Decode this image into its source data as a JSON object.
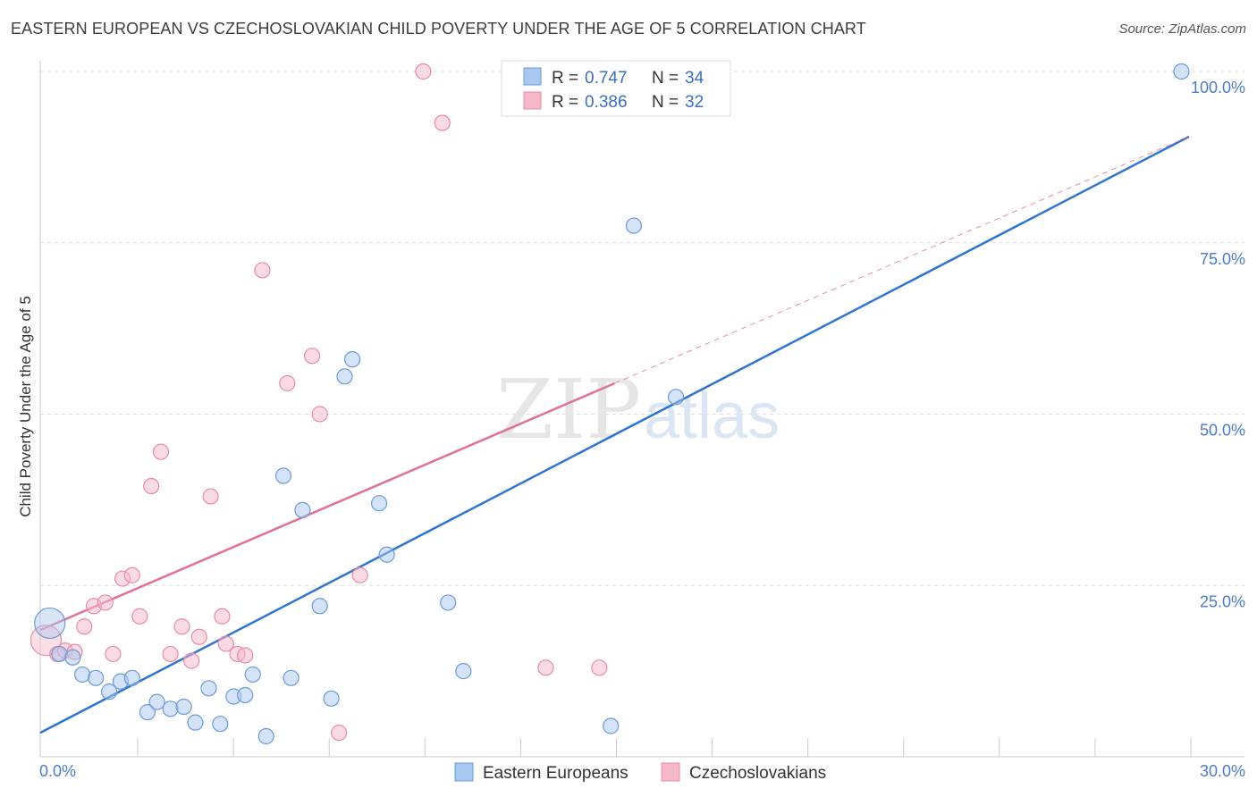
{
  "header": {
    "title": "EASTERN EUROPEAN VS CZECHOSLOVAKIAN CHILD POVERTY UNDER THE AGE OF 5 CORRELATION CHART",
    "source": "Source: ZipAtlas.com"
  },
  "watermark": {
    "zip": "ZIP",
    "atlas": "atlas"
  },
  "legend": {
    "r_label": "R =",
    "n_label": "N =",
    "entries": [
      {
        "r": "0.747",
        "n": "34"
      },
      {
        "r": "0.386",
        "n": "32"
      }
    ]
  },
  "colors": {
    "blue_fill": "#a9c8f0",
    "blue_stroke": "#6b9bd8",
    "blue_line": "#2f74cf",
    "pink_fill": "#f6b8c9",
    "pink_stroke": "#e98aa6",
    "pink_line": "#e0709a",
    "grid": "#dcdcdc",
    "tick_label": "#4a7cc9"
  },
  "chart_data": {
    "type": "scatter",
    "ylabel": "Child Poverty Under the Age of 5",
    "xlim": [
      0,
      30
    ],
    "ylim": [
      0,
      100
    ],
    "x_ticks": [
      "0.0%",
      "30.0%"
    ],
    "y_ticks": [
      {
        "value": 25,
        "label": "25.0%"
      },
      {
        "value": 50,
        "label": "50.0%"
      },
      {
        "value": 75,
        "label": "75.0%"
      },
      {
        "value": 100,
        "label": "100.0%"
      }
    ],
    "grid": true,
    "legend_position": "top-center",
    "series": [
      {
        "name": "Eastern Europeans",
        "color": "#a9c8f0",
        "trend": {
          "x": [
            0,
            30
          ],
          "y": [
            3.5,
            90.5
          ]
        },
        "points": [
          {
            "x": 0.25,
            "y": 19.5,
            "big": true
          },
          {
            "x": 0.5,
            "y": 15.0
          },
          {
            "x": 0.85,
            "y": 14.5
          },
          {
            "x": 1.1,
            "y": 12.0
          },
          {
            "x": 1.45,
            "y": 11.5
          },
          {
            "x": 1.8,
            "y": 9.5
          },
          {
            "x": 2.1,
            "y": 11.0
          },
          {
            "x": 2.4,
            "y": 11.5
          },
          {
            "x": 2.8,
            "y": 6.5
          },
          {
            "x": 3.05,
            "y": 8.0
          },
          {
            "x": 3.4,
            "y": 7.0
          },
          {
            "x": 3.75,
            "y": 7.3
          },
          {
            "x": 4.05,
            "y": 5.0
          },
          {
            "x": 4.4,
            "y": 10.0
          },
          {
            "x": 4.7,
            "y": 4.8
          },
          {
            "x": 5.05,
            "y": 8.8
          },
          {
            "x": 5.35,
            "y": 9.0
          },
          {
            "x": 5.55,
            "y": 12.0
          },
          {
            "x": 5.9,
            "y": 3.0
          },
          {
            "x": 6.35,
            "y": 41.0
          },
          {
            "x": 6.55,
            "y": 11.5
          },
          {
            "x": 6.85,
            "y": 36.0
          },
          {
            "x": 7.3,
            "y": 22.0
          },
          {
            "x": 7.6,
            "y": 8.5
          },
          {
            "x": 7.95,
            "y": 55.5
          },
          {
            "x": 8.15,
            "y": 58.0
          },
          {
            "x": 8.85,
            "y": 37.0
          },
          {
            "x": 9.05,
            "y": 29.5
          },
          {
            "x": 10.65,
            "y": 22.5
          },
          {
            "x": 11.05,
            "y": 12.5
          },
          {
            "x": 14.9,
            "y": 4.5
          },
          {
            "x": 15.5,
            "y": 77.5
          },
          {
            "x": 16.6,
            "y": 52.5
          },
          {
            "x": 29.8,
            "y": 100.0
          }
        ]
      },
      {
        "name": "Czechoslovakians",
        "color": "#f6b8c9",
        "trend": {
          "x": [
            0,
            15
          ],
          "y": [
            18.5,
            54.5
          ],
          "extend_to": [
            30,
            90.5
          ]
        },
        "points": [
          {
            "x": 0.15,
            "y": 17.0,
            "big": true
          },
          {
            "x": 0.45,
            "y": 15.0
          },
          {
            "x": 0.65,
            "y": 15.5
          },
          {
            "x": 0.9,
            "y": 15.3
          },
          {
            "x": 1.15,
            "y": 19.0
          },
          {
            "x": 1.4,
            "y": 22.0
          },
          {
            "x": 1.7,
            "y": 22.5
          },
          {
            "x": 1.9,
            "y": 15.0
          },
          {
            "x": 2.15,
            "y": 26.0
          },
          {
            "x": 2.4,
            "y": 26.5
          },
          {
            "x": 2.6,
            "y": 20.5
          },
          {
            "x": 2.9,
            "y": 39.5
          },
          {
            "x": 3.15,
            "y": 44.5
          },
          {
            "x": 3.4,
            "y": 15.0
          },
          {
            "x": 3.7,
            "y": 19.0
          },
          {
            "x": 3.95,
            "y": 14.0
          },
          {
            "x": 4.15,
            "y": 17.5
          },
          {
            "x": 4.45,
            "y": 38.0
          },
          {
            "x": 4.75,
            "y": 20.5
          },
          {
            "x": 4.85,
            "y": 16.5
          },
          {
            "x": 5.15,
            "y": 15.0
          },
          {
            "x": 5.35,
            "y": 14.8
          },
          {
            "x": 5.8,
            "y": 71.0
          },
          {
            "x": 6.45,
            "y": 54.5
          },
          {
            "x": 7.1,
            "y": 58.5
          },
          {
            "x": 7.3,
            "y": 50.0
          },
          {
            "x": 7.8,
            "y": 3.5
          },
          {
            "x": 8.35,
            "y": 26.5
          },
          {
            "x": 10.0,
            "y": 100.0
          },
          {
            "x": 10.5,
            "y": 92.5
          },
          {
            "x": 13.2,
            "y": 13.0
          },
          {
            "x": 14.6,
            "y": 13.0
          }
        ]
      }
    ]
  }
}
